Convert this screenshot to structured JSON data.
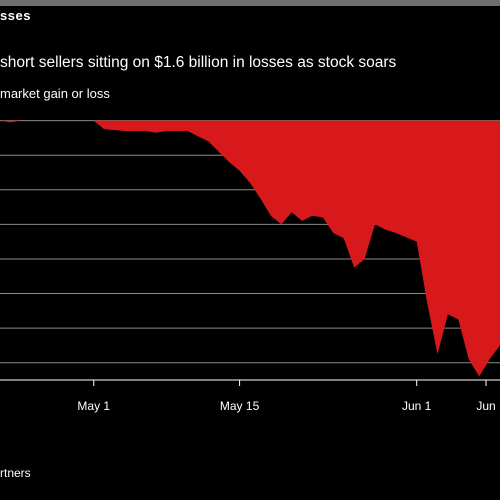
{
  "header": {
    "kicker": "sses",
    "title": "short sellers sitting on $1.6 billion in losses as stock soars",
    "subtitle": "market gain or loss",
    "source": "rtners"
  },
  "colors": {
    "background": "#000000",
    "loss_fill": "#d7191c",
    "gridline": "#8a8a8a",
    "text": "#ffffff"
  },
  "chart_data": {
    "type": "area",
    "title": "short sellers sitting on $1.6 billion in losses as stock soars",
    "subtitle": "market gain or loss",
    "x_tick_labels": [
      "May 1",
      "May 15",
      "Jun 1",
      "Jun"
    ],
    "x_range": [
      "2020-04-22",
      "2020-06-09"
    ],
    "x": [
      "2020-04-22",
      "2020-04-23",
      "2020-04-24",
      "2020-04-26",
      "2020-04-27",
      "2020-04-29",
      "2020-04-30",
      "2020-05-01",
      "2020-05-02",
      "2020-05-04",
      "2020-05-05",
      "2020-05-06",
      "2020-05-07",
      "2020-05-08",
      "2020-05-10",
      "2020-05-11",
      "2020-05-12",
      "2020-05-13",
      "2020-05-14",
      "2020-05-15",
      "2020-05-16",
      "2020-05-17",
      "2020-05-18",
      "2020-05-19",
      "2020-05-20",
      "2020-05-21",
      "2020-05-22",
      "2020-05-23",
      "2020-05-24",
      "2020-05-25",
      "2020-05-26",
      "2020-05-27",
      "2020-05-28",
      "2020-05-29",
      "2020-05-30",
      "2020-06-01",
      "2020-06-02",
      "2020-06-03",
      "2020-06-04",
      "2020-06-05",
      "2020-06-06",
      "2020-06-07",
      "2020-06-08",
      "2020-06-09"
    ],
    "values": [
      0.0,
      -0.01,
      0.0,
      0.0,
      0.0,
      0.0,
      0.0,
      0.0,
      -0.05,
      -0.06,
      -0.06,
      -0.06,
      -0.07,
      -0.06,
      -0.06,
      -0.09,
      -0.12,
      -0.18,
      -0.24,
      -0.29,
      -0.36,
      -0.45,
      -0.55,
      -0.6,
      -0.53,
      -0.58,
      -0.55,
      -0.56,
      -0.65,
      -0.68,
      -0.85,
      -0.8,
      -0.6,
      -0.63,
      -0.65,
      -0.7,
      -1.05,
      -1.35,
      -1.12,
      -1.15,
      -1.38,
      -1.48,
      -1.38,
      -1.3
    ],
    "y_range": [
      -1.5,
      0.05
    ],
    "gridlines": true
  }
}
